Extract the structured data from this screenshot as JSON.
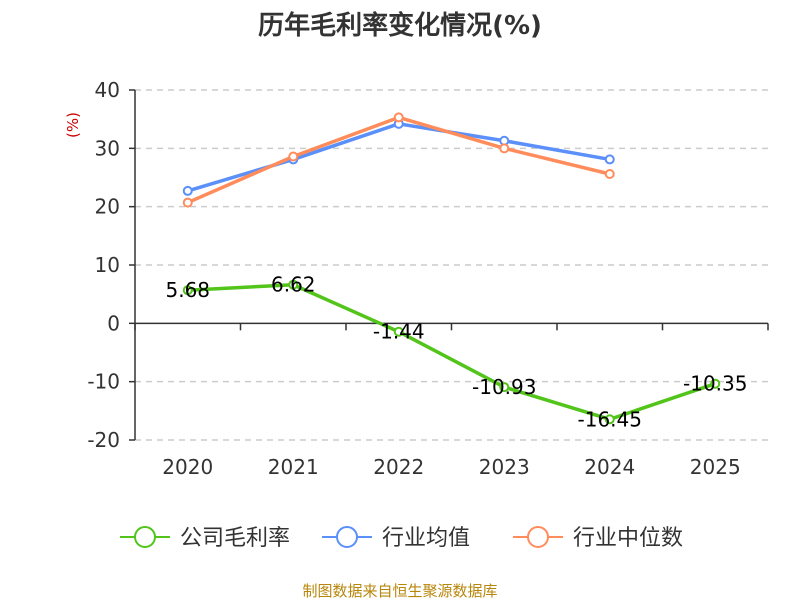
{
  "chart_data": {
    "type": "line",
    "title": "历年毛利率变化情况(%)",
    "ylabel": "(%)",
    "xlabel": "",
    "categories": [
      "2020",
      "2021",
      "2022",
      "2023",
      "2024",
      "2025"
    ],
    "ylim": [
      -20,
      40
    ],
    "yticks": [
      40,
      30,
      20,
      10,
      0,
      -10,
      -20
    ],
    "grid": true,
    "legend_position": "bottom",
    "series": [
      {
        "name": "公司毛利率",
        "color": "#52c41a",
        "values": [
          5.68,
          6.62,
          -1.44,
          -10.93,
          -16.45,
          -10.35
        ],
        "labels": [
          "5.68",
          "6.62",
          "-1.44",
          "-10.93",
          "-16.45",
          "-10.35"
        ]
      },
      {
        "name": "行业均值",
        "color": "#5b8ff9",
        "values": [
          22.7,
          28.1,
          34.2,
          31.3,
          28.1,
          null
        ]
      },
      {
        "name": "行业中位数",
        "color": "#ff8c5a",
        "values": [
          20.7,
          28.6,
          35.3,
          30.0,
          25.6,
          null
        ]
      }
    ]
  },
  "source": "制图数据来自恒生聚源数据库"
}
